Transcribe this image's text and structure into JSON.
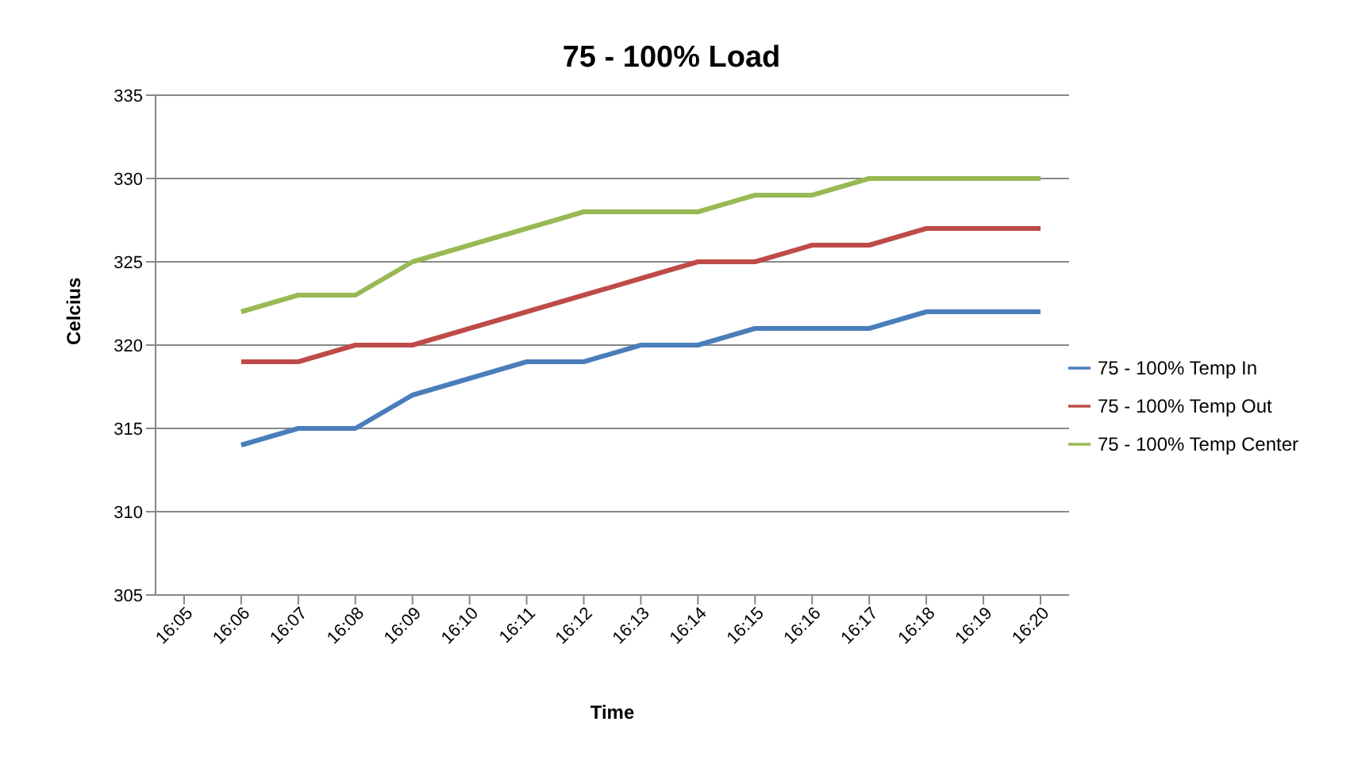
{
  "chart_data": {
    "type": "line",
    "title": "75 - 100% Load",
    "xlabel": "Time",
    "ylabel": "Celcius",
    "categories": [
      "16:05",
      "16:06",
      "16:07",
      "16:08",
      "16:09",
      "16:10",
      "16:11",
      "16:12",
      "16:13",
      "16:14",
      "16:15",
      "16:16",
      "16:17",
      "16:18",
      "16:19",
      "16:20"
    ],
    "series": [
      {
        "name": "75 - 100% Temp In",
        "color": "#4a7ebb",
        "values": [
          null,
          314,
          315,
          315,
          317,
          318,
          319,
          319,
          320,
          320,
          321,
          321,
          321,
          322,
          322,
          322
        ]
      },
      {
        "name": "75 - 100% Temp Out",
        "color": "#be4b48",
        "values": [
          null,
          319,
          319,
          320,
          320,
          321,
          322,
          323,
          324,
          325,
          325,
          326,
          326,
          327,
          327,
          327
        ]
      },
      {
        "name": "75 - 100% Temp Center",
        "color": "#98b954",
        "values": [
          null,
          322,
          323,
          323,
          325,
          326,
          327,
          328,
          328,
          328,
          329,
          329,
          330,
          330,
          330,
          330
        ]
      }
    ],
    "ylim": [
      305,
      335
    ],
    "yticks": [
      305,
      310,
      315,
      320,
      325,
      330,
      335
    ],
    "grid": "y",
    "legend": "right",
    "marker": "none",
    "line_style": "solid"
  }
}
